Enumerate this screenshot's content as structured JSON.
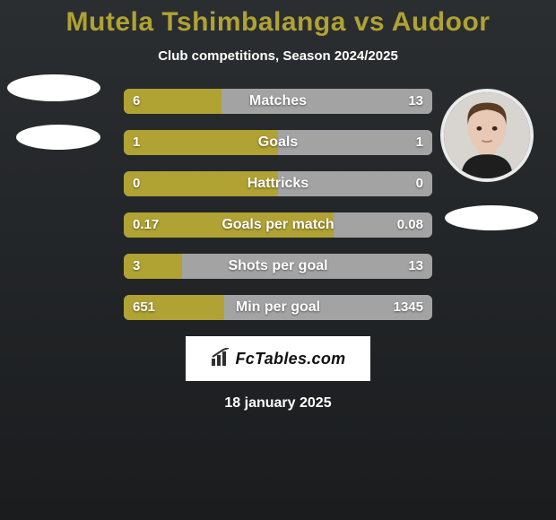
{
  "colors": {
    "bg_top": "#2b2e31",
    "bg_bottom": "#1a1c1e",
    "title": "#b0a233",
    "text": "#ffffff",
    "bar_left": "#b0a233",
    "bar_right": "#a3a3a3",
    "logo_bg": "#ffffff",
    "logo_text": "#111111",
    "logo_icon": "#2f2f2f"
  },
  "title": "Mutela Tshimbalanga vs Audoor",
  "subtitle": "Club competitions, Season 2024/2025",
  "bars": [
    {
      "label": "Matches",
      "left_val": "6",
      "right_val": "13",
      "left_pct": 31.6,
      "right_pct": 68.4
    },
    {
      "label": "Goals",
      "left_val": "1",
      "right_val": "1",
      "left_pct": 50.0,
      "right_pct": 50.0
    },
    {
      "label": "Hattricks",
      "left_val": "0",
      "right_val": "0",
      "left_pct": 50.0,
      "right_pct": 50.0
    },
    {
      "label": "Goals per match",
      "left_val": "0.17",
      "right_val": "0.08",
      "left_pct": 68.0,
      "right_pct": 32.0
    },
    {
      "label": "Shots per goal",
      "left_val": "3",
      "right_val": "13",
      "left_pct": 18.8,
      "right_pct": 81.2
    },
    {
      "label": "Min per goal",
      "left_val": "651",
      "right_val": "1345",
      "left_pct": 32.6,
      "right_pct": 67.4
    }
  ],
  "logo_text": "FcTables.com",
  "date": "18 january 2025",
  "fontsize": {
    "title": 30,
    "subtitle": 15,
    "bar_label": 16,
    "bar_value": 15,
    "logo": 18,
    "date": 16
  }
}
